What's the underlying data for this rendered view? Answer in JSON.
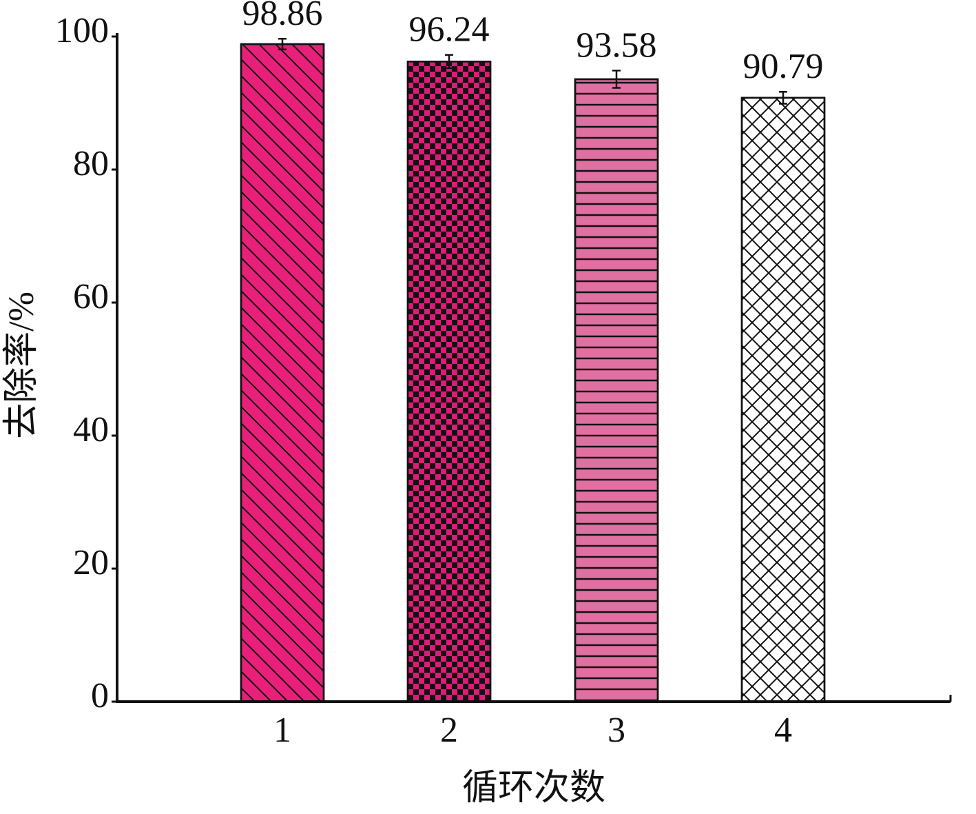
{
  "chart_data": {
    "type": "bar",
    "x_label": "循环次数",
    "y_label": "去除率/%",
    "categories": [
      "1",
      "2",
      "3",
      "4"
    ],
    "values": [
      98.86,
      96.24,
      93.58,
      90.79
    ],
    "errors": [
      0.8,
      1.0,
      1.3,
      0.9
    ],
    "colors": [
      "#e8207a",
      "#e01a78",
      "#e070a2",
      "#ffffff"
    ],
    "patterns": [
      "diagonal",
      "checker",
      "horizontal",
      "crosshatch"
    ],
    "ylim": [
      0,
      100
    ],
    "yticks": [
      0,
      20,
      40,
      60,
      80,
      100
    ],
    "grid": false
  }
}
